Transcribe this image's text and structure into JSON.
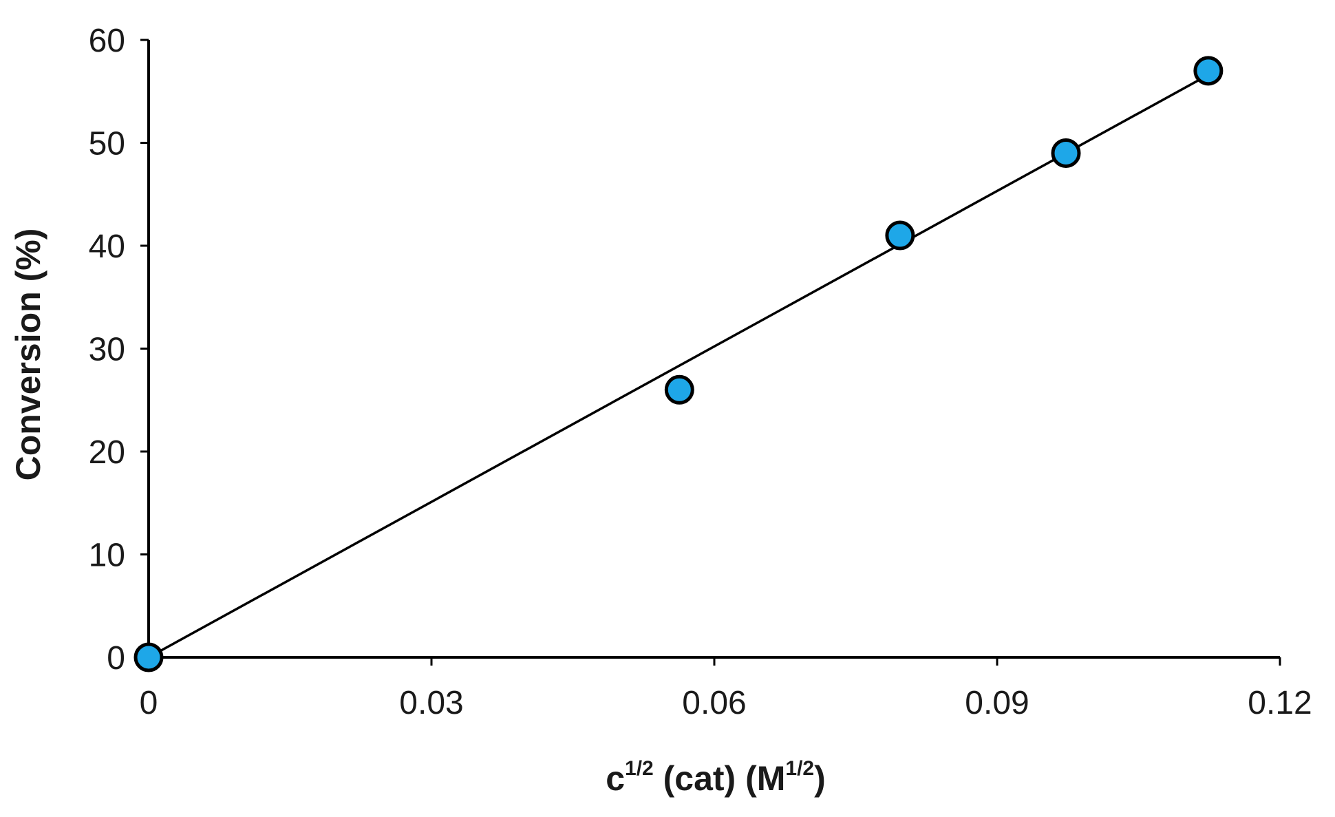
{
  "chart_data": {
    "type": "scatter",
    "title": "",
    "xlabel": {
      "base": "c",
      "sup": "1/2",
      "middle": " (cat) (M",
      "unit_sup": "1/2",
      "end": ")"
    },
    "ylabel": "Conversion (%)",
    "xlim": [
      0,
      0.12
    ],
    "ylim": [
      0,
      60
    ],
    "xticks": [
      0,
      0.03,
      0.06,
      0.09,
      0.12
    ],
    "xtick_labels": [
      "0",
      "0.03",
      "0.06",
      "0.09",
      "0.12"
    ],
    "yticks": [
      0,
      10,
      20,
      30,
      40,
      50,
      60
    ],
    "ytick_labels": [
      "0",
      "10",
      "20",
      "30",
      "40",
      "50",
      "60"
    ],
    "grid": false,
    "legend": "none",
    "series": [
      {
        "x": [
          0,
          0.0563,
          0.0797,
          0.0973,
          0.1124
        ],
        "y": [
          0,
          26,
          41,
          49,
          57
        ],
        "color": "#1ea7e8",
        "marker": "circle"
      }
    ],
    "trendline": {
      "type": "linear",
      "x": [
        0,
        0.1124
      ],
      "y": [
        0,
        56.6
      ]
    }
  }
}
